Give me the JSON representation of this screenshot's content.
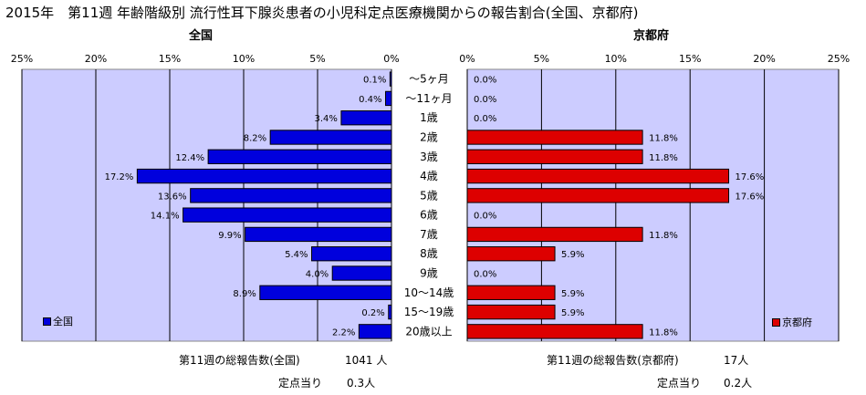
{
  "title": "2015年　第11週 年齢階級別 流行性耳下腺炎患者の小児科定点医療機関からの報告割合(全国、京都府)",
  "colors": {
    "national": "#0000dd",
    "kyoto": "#dd0000",
    "plot_bg": "#ccccff",
    "grid": "#000000"
  },
  "chart_data": [
    {
      "type": "bar",
      "orientation": "horizontal-left",
      "title": "全国",
      "categories": [
        "～5ヶ月",
        "～11ヶ月",
        "1歳",
        "2歳",
        "3歳",
        "4歳",
        "5歳",
        "6歳",
        "7歳",
        "8歳",
        "9歳",
        "10～14歳",
        "15～19歳",
        "20歳以上"
      ],
      "series": [
        {
          "name": "全国",
          "values": [
            0.1,
            0.4,
            3.4,
            8.2,
            12.4,
            17.2,
            13.6,
            14.1,
            9.9,
            5.4,
            4.0,
            8.9,
            0.2,
            2.2
          ]
        }
      ],
      "data_labels": [
        "0.1%",
        "0.4%",
        "3.4%",
        "8.2%",
        "12.4%",
        "17.2%",
        "13.6%",
        "14.1%",
        "9.9%",
        "5.4%",
        "4.0%",
        "8.9%",
        "0.2%",
        "2.2%"
      ],
      "xlim": [
        0,
        25
      ],
      "x_ticks": [
        "25%",
        "20%",
        "15%",
        "10%",
        "5%",
        "0%"
      ],
      "grid": true,
      "legend": "bottom-left"
    },
    {
      "type": "bar",
      "orientation": "horizontal-right",
      "title": "京都府",
      "categories": [
        "～5ヶ月",
        "～11ヶ月",
        "1歳",
        "2歳",
        "3歳",
        "4歳",
        "5歳",
        "6歳",
        "7歳",
        "8歳",
        "9歳",
        "10～14歳",
        "15～19歳",
        "20歳以上"
      ],
      "series": [
        {
          "name": "京都府",
          "values": [
            0.0,
            0.0,
            0.0,
            11.8,
            11.8,
            17.6,
            17.6,
            0.0,
            11.8,
            5.9,
            0.0,
            5.9,
            5.9,
            11.8
          ]
        }
      ],
      "data_labels": [
        "0.0%",
        "0.0%",
        "0.0%",
        "11.8%",
        "11.8%",
        "17.6%",
        "17.6%",
        "0.0%",
        "11.8%",
        "5.9%",
        "0.0%",
        "5.9%",
        "5.9%",
        "11.8%"
      ],
      "xlim": [
        0,
        25
      ],
      "x_ticks": [
        "0%",
        "5%",
        "10%",
        "15%",
        "20%",
        "25%"
      ],
      "grid": true,
      "legend": "bottom-right"
    }
  ],
  "footer": {
    "national_total_label": "第11週の総報告数(全国)",
    "national_total_value": "1041 人",
    "national_per_label": "定点当り",
    "national_per_value": "0.3人",
    "kyoto_total_label": "第11週の総報告数(京都府)",
    "kyoto_total_value": "17人",
    "kyoto_per_label": "定点当り",
    "kyoto_per_value": "0.2人"
  }
}
